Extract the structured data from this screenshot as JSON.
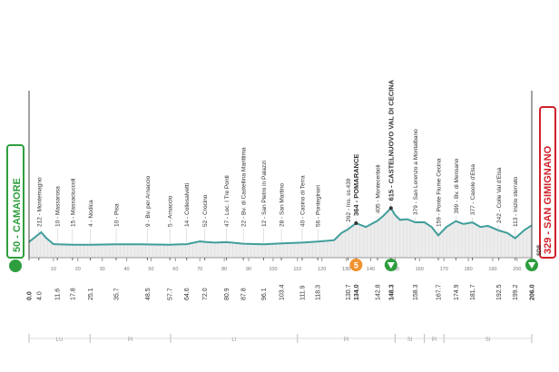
{
  "chart_data": {
    "type": "area",
    "color": "#3f9e9b",
    "x": [
      0,
      3,
      5,
      7,
      10,
      12,
      18,
      25,
      36,
      45,
      48.5,
      57.7,
      62,
      64.6,
      70,
      72,
      76,
      80.9,
      87.8,
      96.1,
      103.4,
      111.9,
      118.3,
      125,
      128,
      130.7,
      134,
      138,
      142.8,
      145,
      148.3,
      150,
      152,
      155,
      158.3,
      162,
      165,
      167.7,
      171,
      174.9,
      178,
      181.7,
      185,
      188,
      192.5,
      196,
      199.2,
      203,
      206
    ],
    "values": [
      50,
      150,
      212,
      120,
      15,
      10,
      5,
      4,
      10,
      10,
      9,
      5,
      12,
      14,
      60,
      52,
      40,
      47,
      22,
      12,
      28,
      40,
      56,
      80,
      200,
      262,
      364,
      300,
      405,
      480,
      615,
      500,
      420,
      430,
      379,
      380,
      300,
      159,
      300,
      399,
      350,
      377,
      300,
      320,
      242,
      200,
      113,
      250,
      329
    ],
    "xlim": [
      0,
      206
    ],
    "ylim": [
      -212,
      3485
    ],
    "xticks": [
      10,
      20,
      30,
      40,
      50,
      60,
      70,
      80,
      90,
      100,
      110,
      120,
      130,
      140,
      150,
      160,
      170,
      180,
      190,
      200
    ]
  },
  "start": {
    "label": "50 - CAMAIORE"
  },
  "finish": {
    "label": "329 - SAN GIMIGNANO",
    "sds": "SDS"
  },
  "sprint": {
    "km": 134,
    "label": "5"
  },
  "waypoints": [
    {
      "km": {
        "value": 0,
        "label": "0.0"
      },
      "bold": true
    },
    {
      "km": {
        "value": 4,
        "label": "4.0"
      },
      "label": "212 - Montemagno"
    },
    {
      "km": 11.6,
      "label": "10 - Massarosa"
    },
    {
      "km": 17.8,
      "label": "15 - Massaciuccoli"
    },
    {
      "km": 25.1,
      "label": "4 - Nodica"
    },
    {
      "km": 35.7,
      "label": "10 - Pisa"
    },
    {
      "km": 48.5,
      "label": "9 - Bv. per Arnaccio"
    },
    {
      "km": 57.7,
      "label": "5 - Arnaccio"
    },
    {
      "km": 64.6,
      "label": "14 - Collesalvetti"
    },
    {
      "km": {
        "value": 72,
        "label": "72.0"
      },
      "label": "52 - Crocino"
    },
    {
      "km": 80.9,
      "label": "47 - Loc. I Tre Ponti"
    },
    {
      "km": 87.8,
      "label": "22 - Bv. di Castellina Marittima"
    },
    {
      "km": 96.1,
      "label": "12 - San Pietro in Palazzi"
    },
    {
      "km": 103.4,
      "label": "28 - San Martino"
    },
    {
      "km": 111.9,
      "label": "40 - Casino di Terra"
    },
    {
      "km": 118.3,
      "label": "56 - Ponteginori"
    },
    {
      "km": 130.7,
      "label": "262 - Ins. ss.439"
    },
    {
      "km": {
        "value": 134,
        "label": "134.0"
      },
      "label": "364 - POMARANCE",
      "bold": true
    },
    {
      "km": 142.8,
      "label": "405 - Montecerboli"
    },
    {
      "km": 148.3,
      "label": "615 - CASTELNUOVO VAL DI CECINA",
      "bold": true
    },
    {
      "km": 158.3,
      "label": "379 - San Lorenzo a Montalbano"
    },
    {
      "km": 167.7,
      "label": "159 - Ponte Fiume Cecina"
    },
    {
      "km": 174.9,
      "label": "399 - Bv. di Mensano"
    },
    {
      "km": 181.7,
      "label": "377 - Casole d'Elsa"
    },
    {
      "km": 192.5,
      "label": "242 - Colle Val d'Elsa"
    },
    {
      "km": 199.2,
      "label": "113 - Inizio sterrato"
    },
    {
      "km": {
        "value": 206,
        "label": "206.0"
      },
      "bold": true
    }
  ],
  "regions": [
    {
      "label": "LU",
      "from": 0,
      "to": 25
    },
    {
      "label": "PI",
      "from": 25,
      "to": 58
    },
    {
      "label": "LI",
      "from": 58,
      "to": 110
    },
    {
      "label": "PI",
      "from": 110,
      "to": 150
    },
    {
      "label": "SI",
      "from": 150,
      "to": 162
    },
    {
      "label": "PI",
      "from": 162,
      "to": 170
    },
    {
      "label": "SI",
      "from": 170,
      "to": 206
    }
  ]
}
